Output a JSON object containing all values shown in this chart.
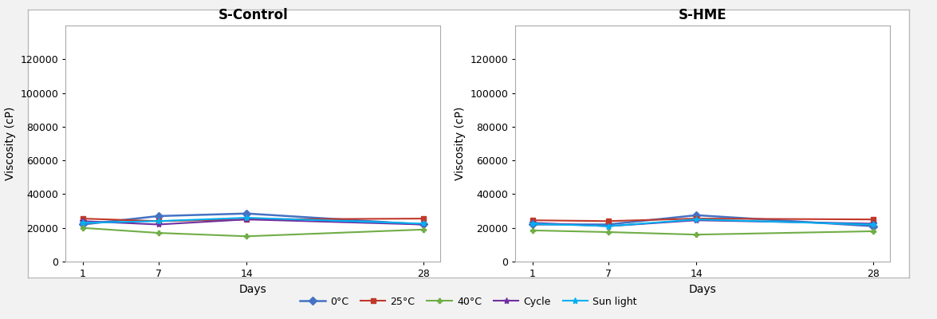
{
  "days": [
    1,
    7,
    14,
    28
  ],
  "panel1_title": "S-Control",
  "panel2_title": "S-HME",
  "ylabel": "Viscosity (cP)",
  "xlabel": "Days",
  "ylim": [
    0,
    140000
  ],
  "yticks": [
    0,
    20000,
    40000,
    60000,
    80000,
    100000,
    120000
  ],
  "series": [
    {
      "label": "0°C",
      "color": "#4472C4",
      "marker": "D",
      "markersize": 5,
      "linewidth": 1.8,
      "s_control": [
        22000,
        27000,
        28500,
        22000
      ],
      "s_hme": [
        22000,
        22000,
        27500,
        21000
      ]
    },
    {
      "label": "25°C",
      "color": "#C0392B",
      "marker": "s",
      "markersize": 5,
      "linewidth": 1.5,
      "s_control": [
        25500,
        24000,
        25000,
        25500
      ],
      "s_hme": [
        24500,
        24000,
        25500,
        25000
      ]
    },
    {
      "label": "40°C",
      "color": "#70AD47",
      "marker": "P",
      "markersize": 5,
      "linewidth": 1.5,
      "s_control": [
        20000,
        17000,
        15000,
        19000
      ],
      "s_hme": [
        18500,
        17500,
        16000,
        18000
      ]
    },
    {
      "label": "Cycle",
      "color": "#7030A0",
      "marker": "*",
      "markersize": 6,
      "linewidth": 1.5,
      "s_control": [
        24000,
        22000,
        25000,
        22000
      ],
      "s_hme": [
        23000,
        21000,
        24500,
        22500
      ]
    },
    {
      "label": "Sun light",
      "color": "#00B0F0",
      "marker": "*",
      "markersize": 6,
      "linewidth": 1.5,
      "s_control": [
        23000,
        24000,
        26000,
        22500
      ],
      "s_hme": [
        22500,
        21000,
        25000,
        22000
      ]
    }
  ],
  "fig_bg_color": "#F2F2F2",
  "panel_bg": "#FFFFFF",
  "outer_border_color": "#BBBBBB",
  "spine_color": "#AAAAAA",
  "grid_color": "#DDDDDD",
  "title_fontsize": 12,
  "axis_label_fontsize": 10,
  "tick_fontsize": 9,
  "legend_fontsize": 9,
  "legend_ncol": 5
}
